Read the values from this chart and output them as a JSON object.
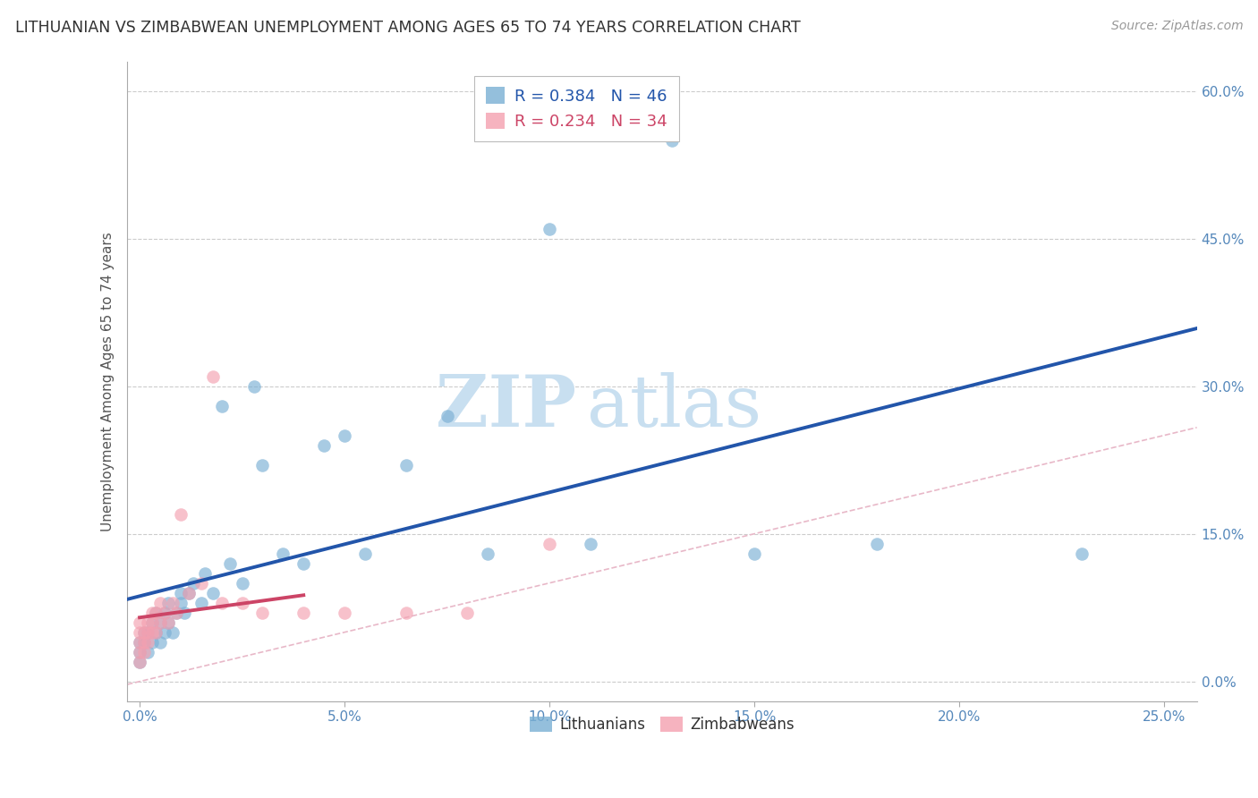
{
  "title": "LITHUANIAN VS ZIMBABWEAN UNEMPLOYMENT AMONG AGES 65 TO 74 YEARS CORRELATION CHART",
  "source": "Source: ZipAtlas.com",
  "ylabel_label": "Unemployment Among Ages 65 to 74 years",
  "xlim": [
    -0.003,
    0.258
  ],
  "ylim": [
    -0.02,
    0.63
  ],
  "xticks": [
    0.0,
    0.05,
    0.1,
    0.15,
    0.2,
    0.25
  ],
  "yticks": [
    0.0,
    0.15,
    0.3,
    0.45,
    0.6
  ],
  "legend_r1": "R = 0.384",
  "legend_n1": "N = 46",
  "legend_r2": "R = 0.234",
  "legend_n2": "N = 34",
  "color_lithuanian": "#7aafd4",
  "color_zimbabwean": "#f4a0b0",
  "scatter_alpha": 0.65,
  "marker_size": 110,
  "watermark_zip": "ZIP",
  "watermark_atlas": "atlas",
  "watermark_color_zip": "#c8dff0",
  "watermark_color_atlas": "#c8dff0",
  "trendline_color_lit": "#2255aa",
  "trendline_color_zim": "#cc4466",
  "trendline_lw": 2.8,
  "refline_color": "#e8b8c8",
  "refline_lw": 1.2,
  "lit_x": [
    0.0,
    0.0,
    0.0,
    0.001,
    0.001,
    0.002,
    0.002,
    0.003,
    0.003,
    0.004,
    0.004,
    0.005,
    0.005,
    0.006,
    0.006,
    0.007,
    0.007,
    0.008,
    0.009,
    0.01,
    0.01,
    0.011,
    0.012,
    0.013,
    0.015,
    0.016,
    0.018,
    0.02,
    0.022,
    0.025,
    0.028,
    0.03,
    0.035,
    0.04,
    0.045,
    0.05,
    0.055,
    0.065,
    0.075,
    0.085,
    0.1,
    0.11,
    0.13,
    0.15,
    0.18,
    0.23
  ],
  "lit_y": [
    0.02,
    0.03,
    0.04,
    0.05,
    0.04,
    0.03,
    0.05,
    0.06,
    0.04,
    0.05,
    0.07,
    0.06,
    0.04,
    0.05,
    0.07,
    0.06,
    0.08,
    0.05,
    0.07,
    0.08,
    0.09,
    0.07,
    0.09,
    0.1,
    0.08,
    0.11,
    0.09,
    0.28,
    0.12,
    0.1,
    0.3,
    0.22,
    0.13,
    0.12,
    0.24,
    0.25,
    0.13,
    0.22,
    0.27,
    0.13,
    0.46,
    0.14,
    0.55,
    0.13,
    0.14,
    0.13
  ],
  "zim_x": [
    0.0,
    0.0,
    0.0,
    0.0,
    0.0,
    0.001,
    0.001,
    0.001,
    0.002,
    0.002,
    0.002,
    0.003,
    0.003,
    0.003,
    0.004,
    0.004,
    0.005,
    0.005,
    0.006,
    0.007,
    0.008,
    0.009,
    0.01,
    0.012,
    0.015,
    0.018,
    0.02,
    0.025,
    0.03,
    0.04,
    0.05,
    0.065,
    0.08,
    0.1
  ],
  "zim_y": [
    0.02,
    0.03,
    0.04,
    0.05,
    0.06,
    0.03,
    0.04,
    0.05,
    0.04,
    0.05,
    0.06,
    0.05,
    0.06,
    0.07,
    0.05,
    0.07,
    0.06,
    0.08,
    0.07,
    0.06,
    0.08,
    0.07,
    0.17,
    0.09,
    0.1,
    0.31,
    0.08,
    0.08,
    0.07,
    0.07,
    0.07,
    0.07,
    0.07,
    0.14
  ]
}
